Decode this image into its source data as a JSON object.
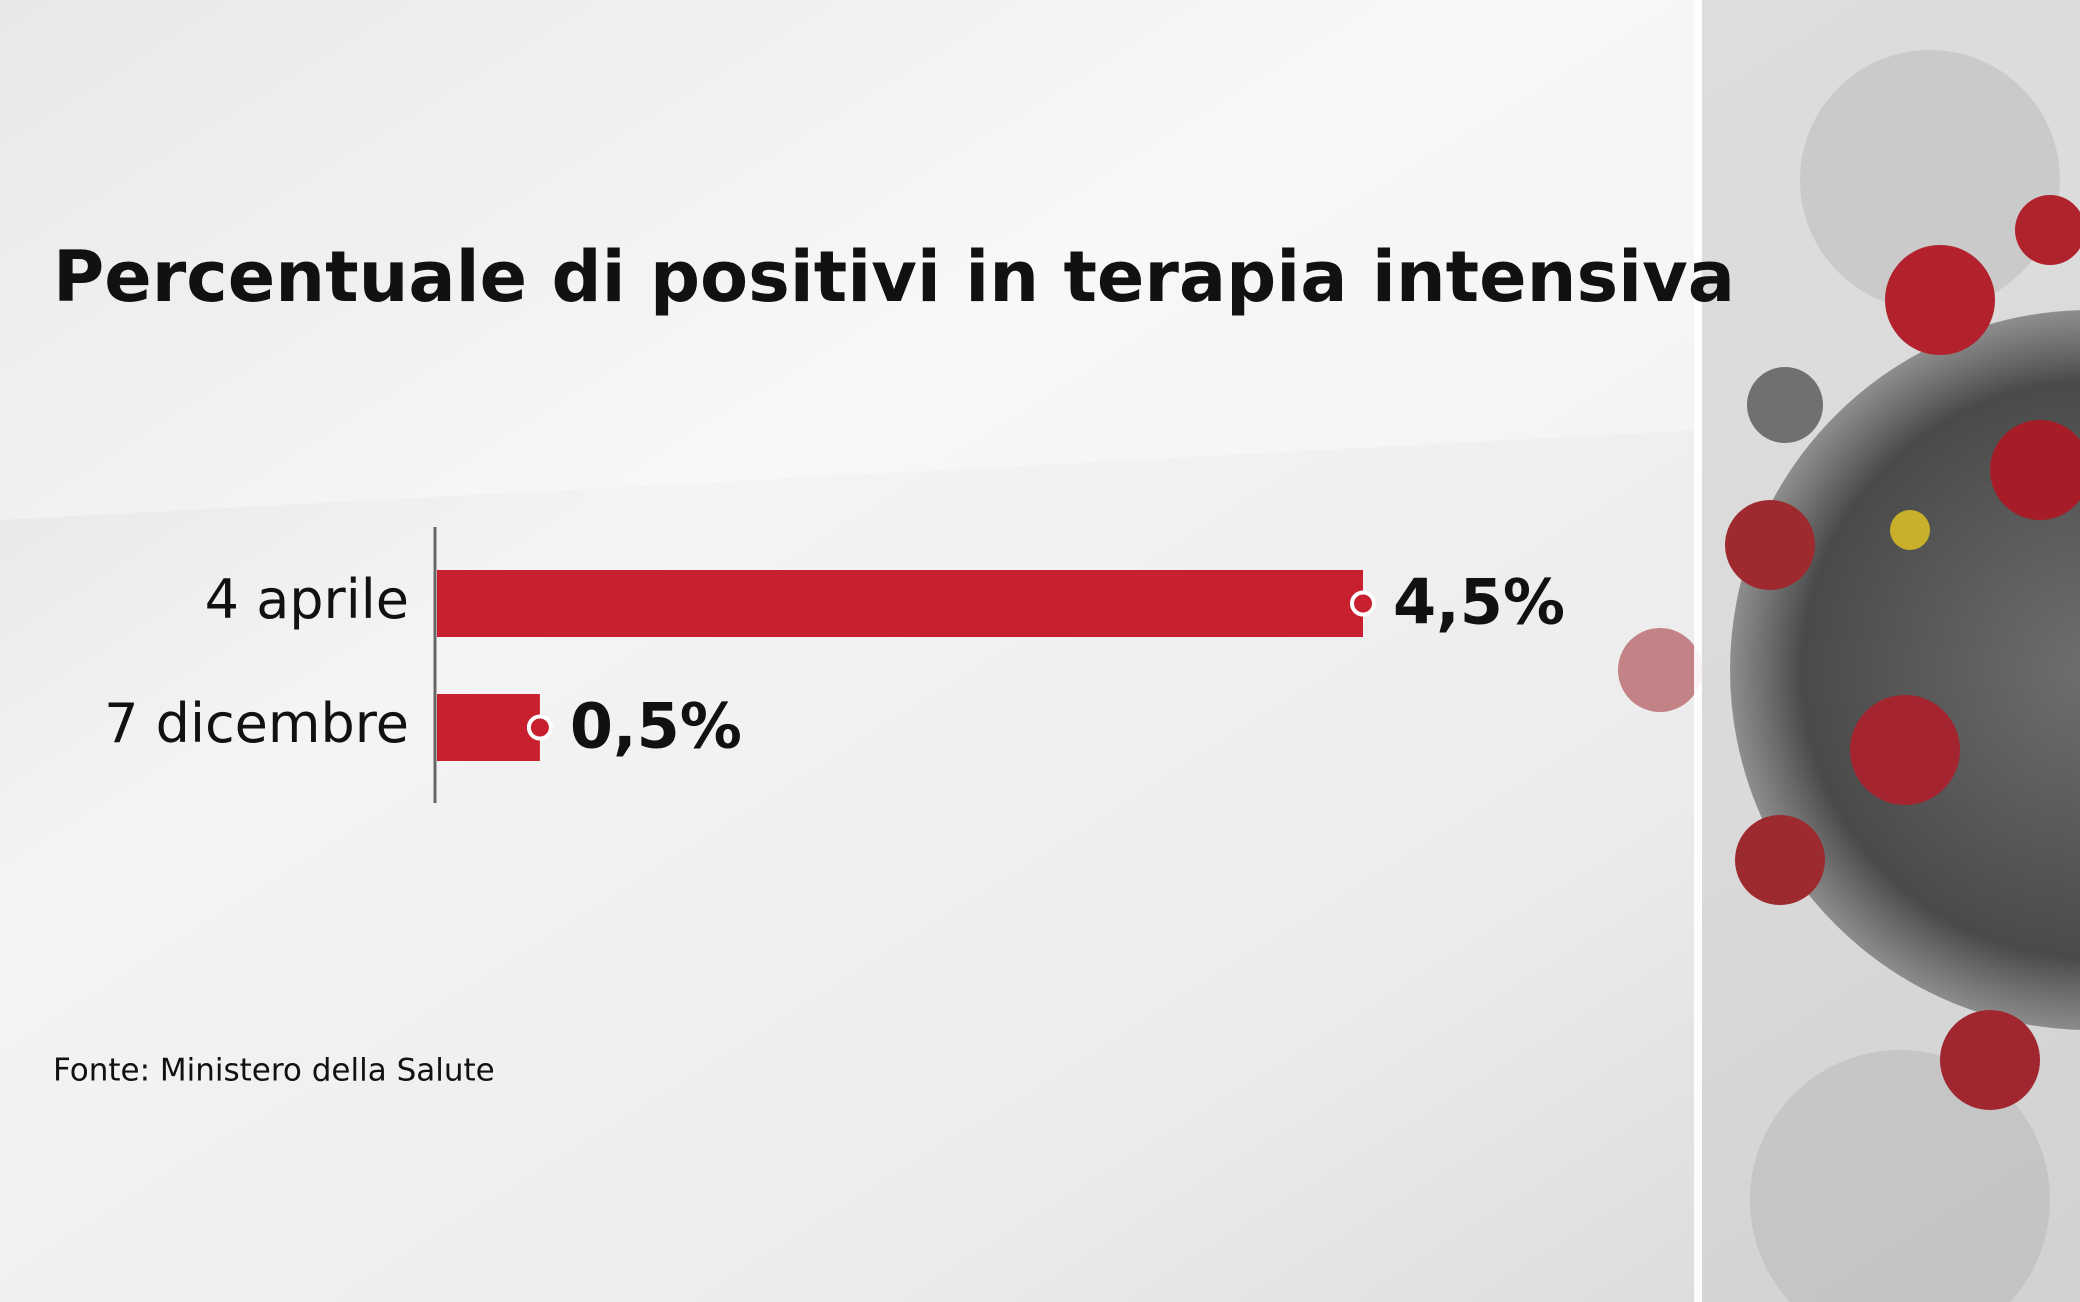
{
  "chart_data": {
    "type": "bar",
    "orientation": "horizontal",
    "title": "Percentuale di positivi in terapia intensiva",
    "categories": [
      "4 aprile",
      "7 dicembre"
    ],
    "values": [
      4.5,
      0.5
    ],
    "value_labels": [
      "4,5%",
      "0,5%"
    ],
    "color": "#c9202f",
    "source": "Fonte: Ministero della Salute"
  }
}
